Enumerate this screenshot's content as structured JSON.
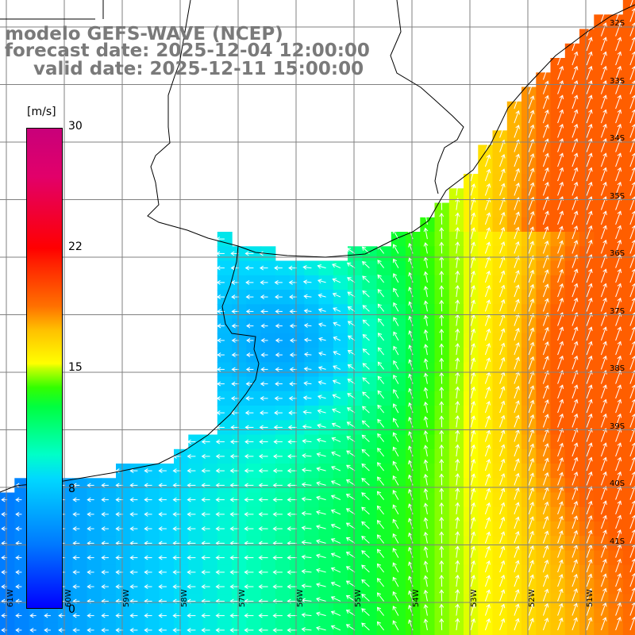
{
  "title": {
    "line1": "modelo GEFS-WAVE (NCEP)",
    "line2": "forecast date: 2025-12-04 12:00:00",
    "line3": "valid date: 2025-12-11 15:00:00"
  },
  "colorbar": {
    "unit": "[m/s]",
    "ticks": [
      "30",
      "22",
      "15",
      "8",
      "0"
    ],
    "tick_values": [
      30,
      22,
      15,
      8,
      0
    ]
  },
  "lat_labels": [
    "32S",
    "33S",
    "34S",
    "35S",
    "36S",
    "37S",
    "38S",
    "39S",
    "40S",
    "41S"
  ],
  "lon_labels": [
    "61W",
    "60W",
    "59W",
    "58W",
    "57W",
    "56W",
    "55W",
    "54W",
    "53W",
    "52W",
    "51W"
  ],
  "colors": {
    "land": "#ffffff",
    "grid": "#808080",
    "coast": "#000000",
    "arrow": "#ffffff",
    "title": "#7a7a7a"
  }
}
